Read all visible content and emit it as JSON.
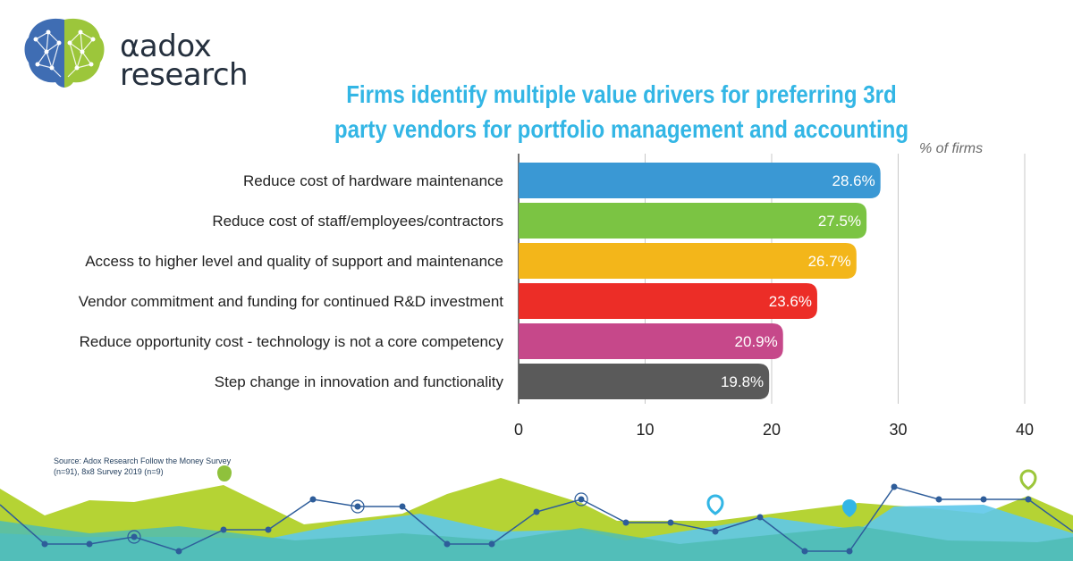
{
  "brand": {
    "line1": "adox",
    "alpha_glyph": "α",
    "line2": "research"
  },
  "title": "Firms identify multiple value drivers for preferring 3rd party vendors for portfolio management and accounting",
  "unit_label": "% of firms",
  "source": "Source: Adox Research Follow the Money Survey (n=91), 8x8 Survey 2019 (n=9)",
  "colors": {
    "title": "#33b6e5",
    "bars": [
      "#3a98d4",
      "#7bc443",
      "#f3b61a",
      "#ec2d27",
      "#c6488a",
      "#5a5a5a"
    ],
    "footer_green": "#b5d334",
    "footer_blue": "#5ec8ea",
    "footer_teal": "#4fbcb4",
    "footer_line": "#2e5d9a"
  },
  "chart_data": {
    "type": "bar",
    "orientation": "horizontal",
    "categories": [
      "Reduce cost of hardware maintenance",
      "Reduce cost of staff/employees/contractors",
      "Access to higher level and quality of support and maintenance",
      "Vendor commitment and funding for continued R&D investment",
      "Reduce opportunity cost - technology is not a core competency",
      "Step change in innovation and functionality"
    ],
    "values": [
      28.6,
      27.5,
      26.7,
      23.6,
      20.9,
      19.8
    ],
    "value_labels": [
      "28.6%",
      "27.5%",
      "26.7%",
      "23.6%",
      "20.9%",
      "19.8%"
    ],
    "xlim": [
      0,
      40
    ],
    "xticks": [
      0,
      10,
      20,
      30,
      40
    ],
    "xtick_labels": [
      "0",
      "10",
      "20",
      "30",
      "40"
    ],
    "grid": true
  }
}
